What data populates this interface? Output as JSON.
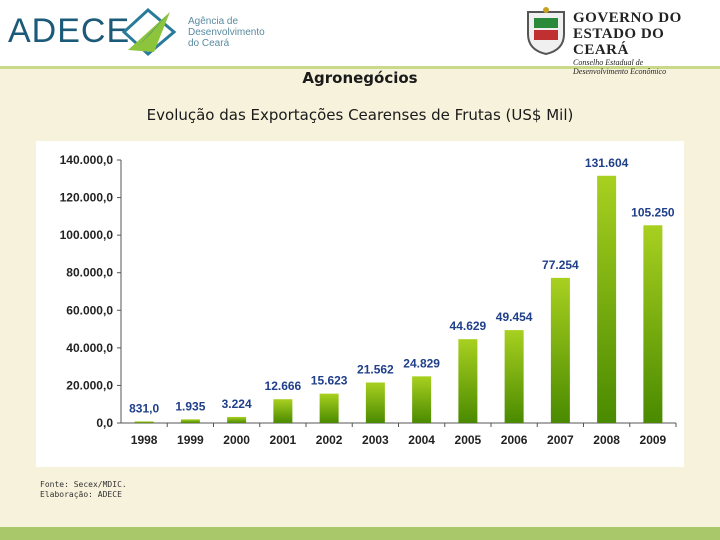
{
  "header": {
    "logo_text": "ADECE",
    "logo_subtitle": [
      "Agência de",
      "Desenvolvimento",
      "do Ceará"
    ],
    "gov_line1": "GOVERNO DO",
    "gov_line2": "ESTADO DO CEARÁ",
    "gov_line3": "Conselho Estadual de",
    "gov_line4": "Desenvolvimento Econômico"
  },
  "section_title": "Agronegócios",
  "source": {
    "line1": "Fonte: Secex/MDIC.",
    "line2": "Elaboração: ADECE"
  },
  "colors": {
    "bar_top": "#a8d020",
    "bar_bottom": "#4a8a00",
    "label": "#1f3f8a",
    "header_accent": "#1b5a78",
    "footer": "#a8c86a"
  },
  "chart_data": {
    "type": "bar",
    "title": "Evolução das Exportações Cearenses de Frutas (US$ Mil)",
    "categories": [
      "1998",
      "1999",
      "2000",
      "2001",
      "2002",
      "2003",
      "2004",
      "2005",
      "2006",
      "2007",
      "2008",
      "2009"
    ],
    "values": [
      831.0,
      1935,
      3224,
      12666,
      15623,
      21562,
      24829,
      44629,
      49454,
      77254,
      131604,
      105250
    ],
    "data_labels": [
      "831,0",
      "1.935",
      "3.224",
      "12.666",
      "15.623",
      "21.562",
      "24.829",
      "44.629",
      "49.454",
      "77.254",
      "131.604",
      "105.250"
    ],
    "y_ticks": [
      0,
      20000,
      40000,
      60000,
      80000,
      100000,
      120000,
      140000
    ],
    "y_tick_labels": [
      "0,0",
      "20.000,0",
      "40.000,0",
      "60.000,0",
      "80.000,0",
      "100.000,0",
      "120.000,0",
      "140.000,0"
    ],
    "ylim": [
      0,
      140000
    ],
    "grid": false,
    "legend": "none"
  }
}
